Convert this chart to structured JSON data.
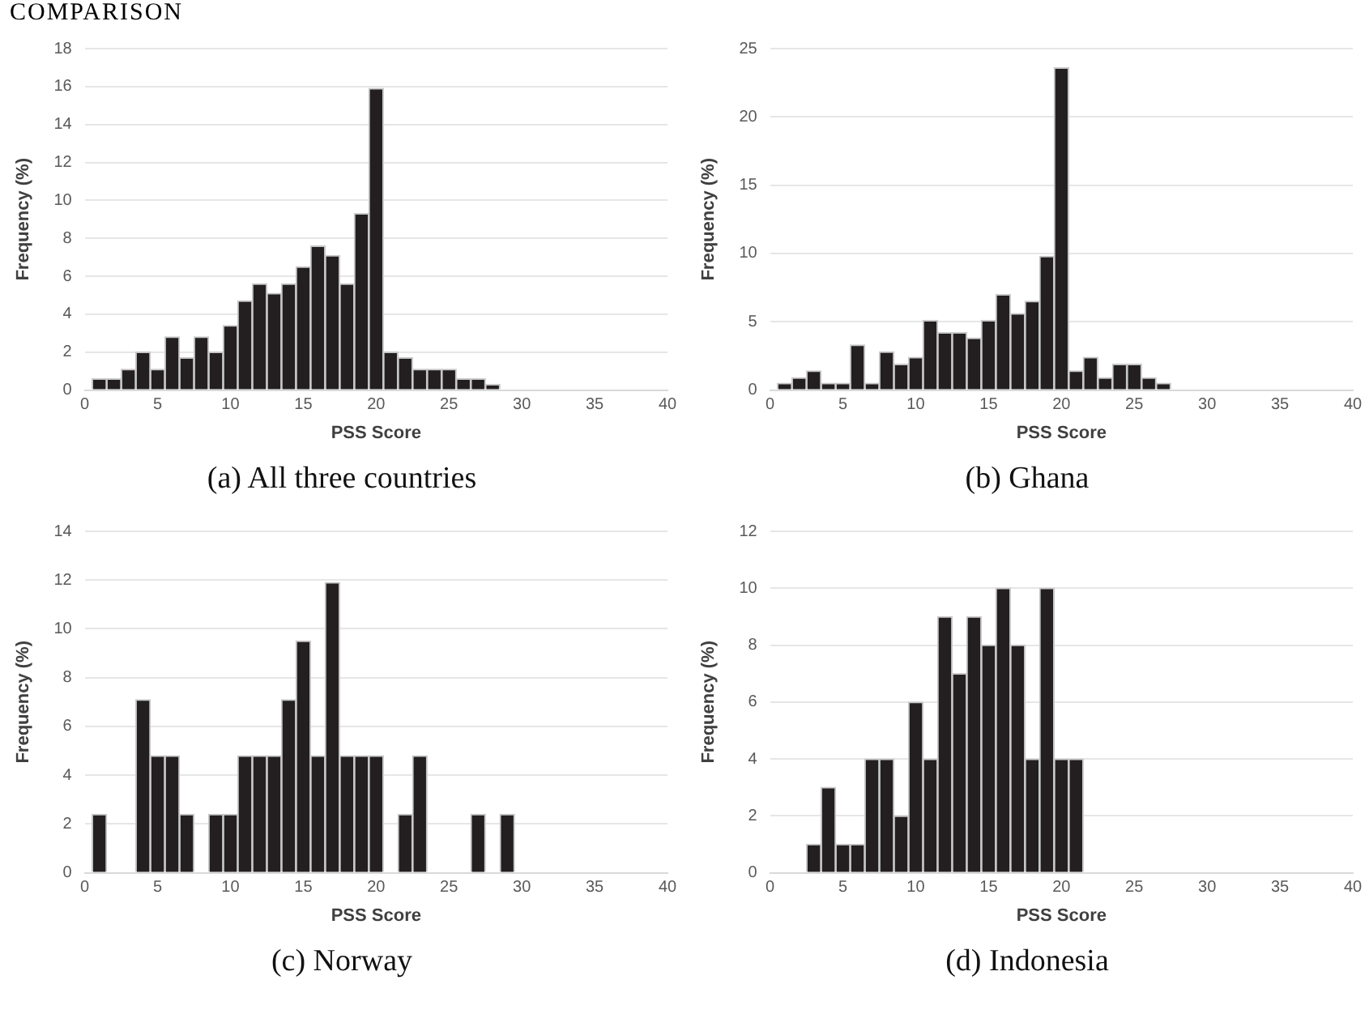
{
  "chart_data": [
    {
      "type": "histogram",
      "title": "COMPARISON",
      "xlabel": "PSS Score",
      "ylabel": "Frequency (%)",
      "annotations": [
        "(a) All three countries"
      ],
      "color": "#231f20",
      "bins": [
        0.5,
        1.5,
        2.5,
        3.5,
        4.5,
        5.5,
        6.5,
        7.5,
        8.5,
        9.5,
        10.5,
        11.5,
        12.5,
        13.5,
        14.5,
        15.5,
        16.5,
        17.5,
        18.5,
        19.5,
        20.5,
        21.5,
        22.5,
        23.5,
        24.5,
        25.5,
        26.5,
        27.5,
        28.5
      ],
      "values": [
        0.6,
        0.6,
        1.1,
        2.0,
        1.1,
        2.8,
        1.7,
        2.8,
        2.0,
        3.4,
        4.7,
        5.6,
        5.1,
        5.6,
        6.5,
        7.6,
        7.1,
        5.6,
        9.3,
        15.9,
        2.0,
        1.7,
        1.1,
        1.1,
        1.1,
        0.6,
        0.6,
        0.3
      ],
      "xlim": [
        0,
        40
      ],
      "xticks": [
        0,
        5,
        10,
        15,
        20,
        25,
        30,
        35,
        40
      ],
      "ylim": [
        0,
        18
      ],
      "yticks": [
        0,
        2,
        4,
        6,
        8,
        10,
        12,
        14,
        16,
        18
      ],
      "grid": "y"
    },
    {
      "type": "histogram",
      "xlabel": "PSS Score",
      "ylabel": "Frequency (%)",
      "annotations": [
        "(b) Ghana"
      ],
      "color": "#231f20",
      "bins": [
        0.5,
        1.5,
        2.5,
        3.5,
        4.5,
        5.5,
        6.5,
        7.5,
        8.5,
        9.5,
        10.5,
        11.5,
        12.5,
        13.5,
        14.5,
        15.5,
        16.5,
        17.5,
        18.5,
        19.5,
        20.5,
        21.5,
        22.5,
        23.5,
        24.5,
        25.5,
        26.5,
        27.5
      ],
      "values": [
        0.5,
        0.9,
        1.4,
        0.5,
        0.5,
        3.3,
        0.5,
        2.8,
        1.9,
        2.4,
        5.1,
        4.2,
        4.2,
        3.8,
        5.1,
        7.0,
        5.6,
        6.5,
        9.8,
        23.6,
        1.4,
        2.4,
        0.9,
        1.9,
        1.9,
        0.9,
        0.5
      ],
      "xlim": [
        0,
        40
      ],
      "xticks": [
        0,
        5,
        10,
        15,
        20,
        25,
        30,
        35,
        40
      ],
      "ylim": [
        0,
        25
      ],
      "yticks": [
        0,
        5,
        10,
        15,
        20,
        25
      ],
      "grid": "y"
    },
    {
      "type": "histogram",
      "xlabel": "PSS Score",
      "ylabel": "Frequency (%)",
      "annotations": [
        "(c) Norway"
      ],
      "color": "#231f20",
      "bins": [
        0.5,
        1.5,
        2.5,
        3.5,
        4.5,
        5.5,
        6.5,
        7.5,
        8.5,
        9.5,
        10.5,
        11.5,
        12.5,
        13.5,
        14.5,
        15.5,
        16.5,
        17.5,
        18.5,
        19.5,
        20.5,
        21.5,
        22.5,
        23.5,
        24.5,
        25.5,
        26.5,
        27.5,
        28.5,
        29.5
      ],
      "values": [
        2.4,
        0,
        0,
        7.1,
        4.8,
        4.8,
        2.4,
        0,
        2.4,
        2.4,
        4.8,
        4.8,
        4.8,
        7.1,
        9.5,
        4.8,
        11.9,
        4.8,
        4.8,
        4.8,
        0,
        2.4,
        4.8,
        0,
        0,
        0,
        2.4,
        0,
        2.4
      ],
      "xlim": [
        0,
        40
      ],
      "xticks": [
        0,
        5,
        10,
        15,
        20,
        25,
        30,
        35,
        40
      ],
      "ylim": [
        0,
        14
      ],
      "yticks": [
        0,
        2,
        4,
        6,
        8,
        10,
        12,
        14
      ],
      "grid": "y"
    },
    {
      "type": "histogram",
      "xlabel": "PSS Score",
      "ylabel": "Frequency (%)",
      "annotations": [
        "(d) Indonesia"
      ],
      "color": "#231f20",
      "bins": [
        2.5,
        3.5,
        4.5,
        5.5,
        6.5,
        7.5,
        8.5,
        9.5,
        10.5,
        11.5,
        12.5,
        13.5,
        14.5,
        15.5,
        16.5,
        17.5,
        18.5,
        19.5,
        20.5,
        21.5
      ],
      "values": [
        1,
        3,
        1,
        1,
        4,
        4,
        2,
        6,
        4,
        9,
        7,
        9,
        8,
        10,
        8,
        4,
        10,
        4,
        4
      ],
      "xlim": [
        0,
        40
      ],
      "xticks": [
        0,
        5,
        10,
        15,
        20,
        25,
        30,
        35,
        40
      ],
      "ylim": [
        0,
        12
      ],
      "yticks": [
        0,
        2,
        4,
        6,
        8,
        10,
        12
      ],
      "grid": "y"
    }
  ]
}
